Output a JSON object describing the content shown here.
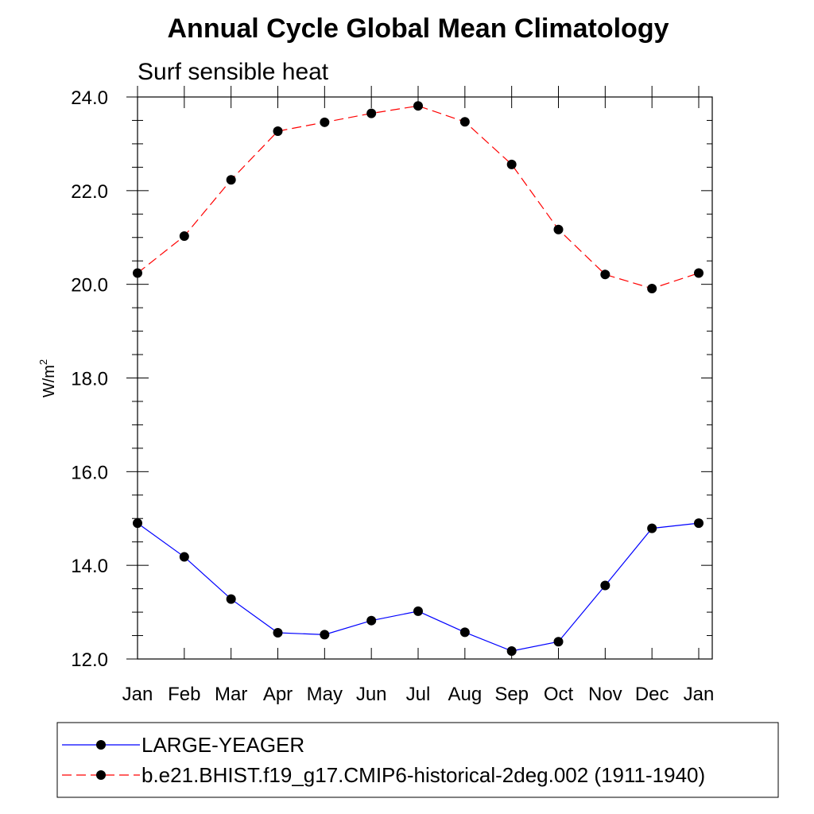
{
  "chart_data": {
    "type": "line",
    "title": "Annual Cycle Global Mean Climatology",
    "subtitle": "Surf sensible heat",
    "ylabel": "W/m",
    "ylabel_superscript": "2",
    "xlabel": "",
    "categories": [
      "Jan",
      "Feb",
      "Mar",
      "Apr",
      "May",
      "Jun",
      "Jul",
      "Aug",
      "Sep",
      "Oct",
      "Nov",
      "Dec",
      "Jan"
    ],
    "ylim": [
      12.0,
      24.0
    ],
    "yticks": [
      "12.0",
      "14.0",
      "16.0",
      "18.0",
      "20.0",
      "22.0",
      "24.0"
    ],
    "grid": false,
    "legend_position": "bottom",
    "series": [
      {
        "name": "LARGE-YEAGER",
        "color": "#0000ff",
        "line_style": "solid",
        "marker": "filled-circle",
        "values": [
          14.9,
          14.18,
          13.28,
          12.56,
          12.52,
          12.82,
          13.02,
          12.57,
          12.17,
          12.37,
          13.57,
          14.79,
          14.9
        ]
      },
      {
        "name": "b.e21.BHIST.f19_g17.CMIP6-historical-2deg.002 (1911-1940)",
        "color": "#ff0000",
        "line_style": "dashed",
        "marker": "filled-circle",
        "values": [
          20.24,
          21.03,
          22.23,
          23.27,
          23.46,
          23.65,
          23.81,
          23.47,
          22.56,
          21.17,
          20.21,
          19.91,
          20.24
        ]
      }
    ]
  }
}
